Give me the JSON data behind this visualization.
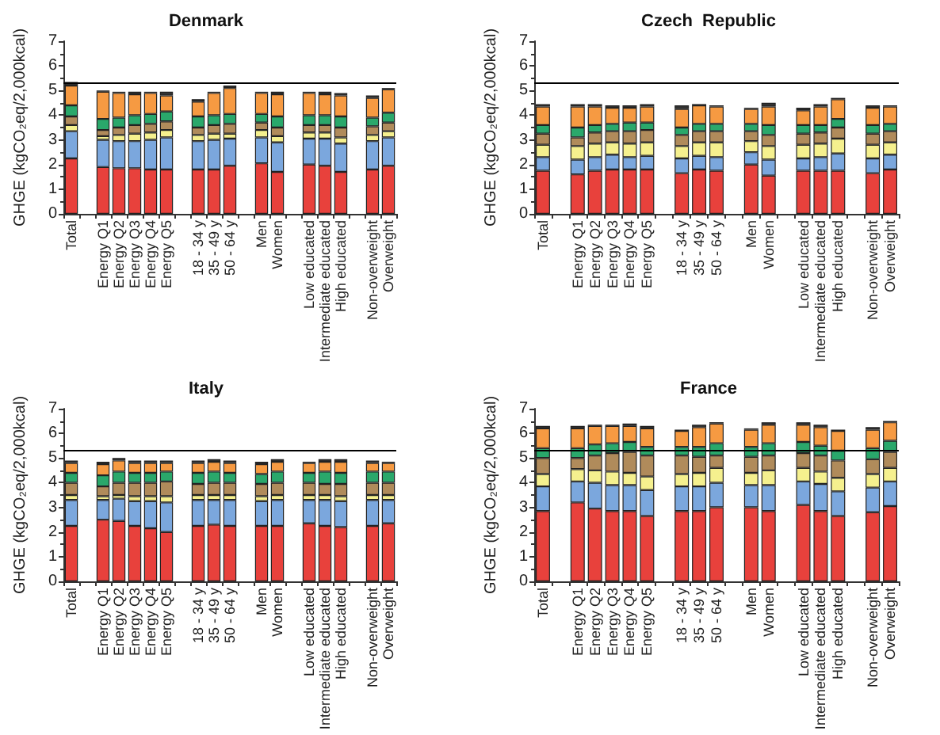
{
  "chart_data": [
    {
      "type": "bar",
      "title": "Denmark",
      "ylabel": "GHGE (kgCO₂eq/2,000kcal)",
      "stacked": true,
      "ylim": [
        0,
        7
      ],
      "yticks": [
        0,
        1,
        2,
        3,
        4,
        5,
        6,
        7
      ],
      "grid": false,
      "legend": false,
      "categories": [
        "Total",
        null,
        "Energy Q1",
        "Energy Q2",
        "Energy Q3",
        "Energy Q4",
        "Energy Q5",
        null,
        "18 - 34 y",
        "35 - 49 y",
        "50 - 64 y",
        null,
        "Men",
        "Women",
        null,
        "Low educated",
        "Intermediate educated",
        "High educated",
        null,
        "Non-overweight",
        "Overweight"
      ],
      "ref_lines": [
        {
          "axis": "y",
          "value": 5.3,
          "color": "#000000"
        }
      ],
      "series": [
        {
          "color": "#e8413c",
          "values": [
            2.25,
            null,
            1.9,
            1.85,
            1.85,
            1.8,
            1.8,
            null,
            1.8,
            1.8,
            1.95,
            null,
            2.05,
            1.7,
            null,
            2.0,
            1.95,
            1.7,
            null,
            1.8,
            1.95
          ]
        },
        {
          "color": "#7ba7dd",
          "values": [
            1.1,
            null,
            1.1,
            1.1,
            1.1,
            1.2,
            1.3,
            null,
            1.15,
            1.2,
            1.1,
            null,
            1.05,
            1.2,
            null,
            1.05,
            1.1,
            1.15,
            null,
            1.15,
            1.15
          ]
        },
        {
          "color": "#f5f08e",
          "values": [
            0.25,
            null,
            0.15,
            0.25,
            0.3,
            0.3,
            0.3,
            null,
            0.25,
            0.25,
            0.2,
            null,
            0.3,
            0.25,
            null,
            0.25,
            0.25,
            0.25,
            null,
            0.25,
            0.25
          ]
        },
        {
          "color": "#b08b5b",
          "values": [
            0.35,
            null,
            0.25,
            0.3,
            0.35,
            0.35,
            0.35,
            null,
            0.3,
            0.35,
            0.4,
            null,
            0.3,
            0.35,
            null,
            0.3,
            0.3,
            0.4,
            null,
            0.35,
            0.35
          ]
        },
        {
          "color": "#2aa86b",
          "values": [
            0.45,
            null,
            0.45,
            0.4,
            0.4,
            0.4,
            0.4,
            null,
            0.45,
            0.4,
            0.4,
            null,
            0.35,
            0.45,
            null,
            0.4,
            0.4,
            0.45,
            null,
            0.35,
            0.4
          ]
        },
        {
          "color": "#f69a42",
          "values": [
            0.8,
            null,
            1.1,
            1.0,
            0.85,
            0.85,
            0.65,
            null,
            0.6,
            0.9,
            1.05,
            null,
            0.85,
            0.9,
            null,
            0.9,
            0.85,
            0.85,
            null,
            0.8,
            0.95
          ]
        },
        {
          "color": "#333333",
          "values": [
            0.15,
            null,
            0.05,
            0.05,
            0.1,
            0.05,
            0.15,
            null,
            0.1,
            0.05,
            0.1,
            null,
            0.05,
            0.1,
            null,
            0.05,
            0.1,
            0.1,
            null,
            0.1,
            0.05
          ]
        }
      ]
    },
    {
      "type": "bar",
      "title": "Czech  Republic",
      "ylabel": "GHGE (kgCO₂eq/2,000kcal)",
      "stacked": true,
      "ylim": [
        0,
        7
      ],
      "yticks": [
        0,
        1,
        2,
        3,
        4,
        5,
        6,
        7
      ],
      "grid": false,
      "legend": false,
      "categories": [
        "Total",
        null,
        "Energy Q1",
        "Energy Q2",
        "Energy Q3",
        "Energy Q4",
        "Energy Q5",
        null,
        "18 - 34 y",
        "35 - 49 y",
        "50 - 64 y",
        null,
        "Men",
        "Women",
        null,
        "Low educated",
        "Intermediate educated",
        "High educated",
        null,
        "Non-overweight",
        "Overweight"
      ],
      "ref_lines": [
        {
          "axis": "y",
          "value": 5.3,
          "color": "#000000"
        }
      ],
      "series": [
        {
          "color": "#e8413c",
          "values": [
            1.75,
            null,
            1.6,
            1.75,
            1.8,
            1.8,
            1.8,
            null,
            1.65,
            1.8,
            1.75,
            null,
            2.0,
            1.55,
            null,
            1.75,
            1.75,
            1.75,
            null,
            1.65,
            1.8
          ]
        },
        {
          "color": "#7ba7dd",
          "values": [
            0.55,
            null,
            0.6,
            0.55,
            0.6,
            0.5,
            0.55,
            null,
            0.6,
            0.55,
            0.55,
            null,
            0.5,
            0.65,
            null,
            0.5,
            0.55,
            0.7,
            null,
            0.6,
            0.6
          ]
        },
        {
          "color": "#f5f08e",
          "values": [
            0.5,
            null,
            0.55,
            0.55,
            0.5,
            0.55,
            0.55,
            null,
            0.5,
            0.55,
            0.6,
            null,
            0.45,
            0.55,
            null,
            0.55,
            0.55,
            0.6,
            null,
            0.55,
            0.5
          ]
        },
        {
          "color": "#b08b5b",
          "values": [
            0.45,
            null,
            0.35,
            0.45,
            0.45,
            0.5,
            0.5,
            null,
            0.45,
            0.45,
            0.45,
            null,
            0.4,
            0.45,
            null,
            0.45,
            0.45,
            0.45,
            null,
            0.45,
            0.45
          ]
        },
        {
          "color": "#2aa86b",
          "values": [
            0.35,
            null,
            0.4,
            0.3,
            0.3,
            0.35,
            0.3,
            null,
            0.3,
            0.3,
            0.3,
            null,
            0.3,
            0.4,
            null,
            0.35,
            0.3,
            0.35,
            null,
            0.35,
            0.3
          ]
        },
        {
          "color": "#f69a42",
          "values": [
            0.75,
            null,
            0.85,
            0.75,
            0.65,
            0.6,
            0.65,
            null,
            0.75,
            0.75,
            0.7,
            null,
            0.6,
            0.75,
            null,
            0.6,
            0.75,
            0.8,
            null,
            0.7,
            0.7
          ]
        },
        {
          "color": "#333333",
          "values": [
            0.1,
            null,
            0.1,
            0.1,
            0.1,
            0.1,
            0.1,
            null,
            0.15,
            0.05,
            0.05,
            null,
            0.05,
            0.15,
            null,
            0.1,
            0.1,
            0.05,
            null,
            0.1,
            0.05
          ]
        }
      ]
    },
    {
      "type": "bar",
      "title": "Italy",
      "ylabel": "GHGE (kgCO₂eq/2,000kcal)",
      "stacked": true,
      "ylim": [
        0,
        7
      ],
      "yticks": [
        0,
        1,
        2,
        3,
        4,
        5,
        6,
        7
      ],
      "grid": false,
      "legend": false,
      "categories": [
        "Total",
        null,
        "Energy Q1",
        "Energy Q2",
        "Energy Q3",
        "Energy Q4",
        "Energy Q5",
        null,
        "18 - 34 y",
        "35 - 49 y",
        "50 - 64 y",
        null,
        "Men",
        "Women",
        null,
        "Low educated",
        "Intermediate educated",
        "High educated",
        null,
        "Non-overweight",
        "Overweight"
      ],
      "ref_lines": [
        {
          "axis": "y",
          "value": 5.3,
          "color": "#000000"
        }
      ],
      "series": [
        {
          "color": "#e8413c",
          "values": [
            2.25,
            null,
            2.5,
            2.45,
            2.25,
            2.15,
            2.0,
            null,
            2.25,
            2.3,
            2.25,
            null,
            2.25,
            2.25,
            null,
            2.35,
            2.25,
            2.2,
            null,
            2.25,
            2.35
          ]
        },
        {
          "color": "#7ba7dd",
          "values": [
            1.05,
            null,
            0.8,
            0.9,
            1.0,
            1.1,
            1.2,
            null,
            1.05,
            1.0,
            1.05,
            null,
            1.0,
            1.05,
            null,
            0.95,
            1.05,
            1.05,
            null,
            1.05,
            0.95
          ]
        },
        {
          "color": "#f5f08e",
          "values": [
            0.2,
            null,
            0.15,
            0.15,
            0.2,
            0.2,
            0.25,
            null,
            0.2,
            0.2,
            0.2,
            null,
            0.2,
            0.2,
            null,
            0.2,
            0.2,
            0.2,
            null,
            0.2,
            0.2
          ]
        },
        {
          "color": "#b08b5b",
          "values": [
            0.5,
            null,
            0.4,
            0.5,
            0.55,
            0.55,
            0.6,
            null,
            0.45,
            0.5,
            0.5,
            null,
            0.5,
            0.5,
            null,
            0.5,
            0.45,
            0.5,
            null,
            0.5,
            0.5
          ]
        },
        {
          "color": "#2aa86b",
          "values": [
            0.4,
            null,
            0.45,
            0.45,
            0.4,
            0.4,
            0.4,
            null,
            0.45,
            0.45,
            0.4,
            null,
            0.4,
            0.45,
            null,
            0.4,
            0.5,
            0.45,
            null,
            0.45,
            0.45
          ]
        },
        {
          "color": "#f69a42",
          "values": [
            0.4,
            null,
            0.45,
            0.45,
            0.4,
            0.4,
            0.35,
            null,
            0.4,
            0.4,
            0.4,
            null,
            0.4,
            0.4,
            null,
            0.4,
            0.4,
            0.45,
            null,
            0.35,
            0.35
          ]
        },
        {
          "color": "#333333",
          "values": [
            0.1,
            null,
            0.1,
            0.1,
            0.1,
            0.1,
            0.1,
            null,
            0.1,
            0.1,
            0.1,
            null,
            0.1,
            0.1,
            null,
            0.05,
            0.1,
            0.1,
            null,
            0.1,
            0.05
          ]
        }
      ]
    },
    {
      "type": "bar",
      "title": "France",
      "ylabel": "GHGE (kgCO₂eq/2,000kcal)",
      "stacked": true,
      "ylim": [
        0,
        7
      ],
      "yticks": [
        0,
        1,
        2,
        3,
        4,
        5,
        6,
        7
      ],
      "grid": false,
      "legend": false,
      "categories": [
        "Total",
        null,
        "Energy Q1",
        "Energy Q2",
        "Energy Q3",
        "Energy Q4",
        "Energy Q5",
        null,
        "18 - 34 y",
        "35 - 49 y",
        "50 - 64 y",
        null,
        "Men",
        "Women",
        null,
        "Low educated",
        "Intermediate educated",
        "High educated",
        null,
        "Non-overweight",
        "Overweight"
      ],
      "ref_lines": [
        {
          "axis": "y",
          "value": 5.3,
          "color": "#000000"
        }
      ],
      "series": [
        {
          "color": "#e8413c",
          "values": [
            2.85,
            null,
            3.2,
            2.95,
            2.85,
            2.85,
            2.65,
            null,
            2.85,
            2.85,
            3.0,
            null,
            3.0,
            2.85,
            null,
            3.1,
            2.85,
            2.65,
            null,
            2.8,
            3.05
          ]
        },
        {
          "color": "#7ba7dd",
          "values": [
            1.0,
            null,
            0.85,
            1.05,
            1.05,
            1.05,
            1.05,
            null,
            1.0,
            1.0,
            1.0,
            null,
            0.9,
            1.05,
            null,
            0.95,
            1.1,
            1.0,
            null,
            1.0,
            1.0
          ]
        },
        {
          "color": "#f5f08e",
          "values": [
            0.5,
            null,
            0.5,
            0.5,
            0.55,
            0.5,
            0.55,
            null,
            0.5,
            0.55,
            0.6,
            null,
            0.5,
            0.6,
            null,
            0.55,
            0.5,
            0.55,
            null,
            0.55,
            0.55
          ]
        },
        {
          "color": "#b08b5b",
          "values": [
            0.65,
            null,
            0.45,
            0.6,
            0.75,
            0.85,
            0.85,
            null,
            0.75,
            0.65,
            0.5,
            null,
            0.65,
            0.6,
            null,
            0.6,
            0.65,
            0.7,
            null,
            0.6,
            0.65
          ]
        },
        {
          "color": "#2aa86b",
          "values": [
            0.4,
            null,
            0.4,
            0.45,
            0.4,
            0.4,
            0.35,
            null,
            0.35,
            0.4,
            0.5,
            null,
            0.4,
            0.5,
            null,
            0.45,
            0.4,
            0.4,
            null,
            0.45,
            0.45
          ]
        },
        {
          "color": "#f69a42",
          "values": [
            0.8,
            null,
            0.8,
            0.75,
            0.7,
            0.65,
            0.75,
            null,
            0.65,
            0.8,
            0.8,
            null,
            0.7,
            0.75,
            null,
            0.7,
            0.75,
            0.8,
            null,
            0.75,
            0.75
          ]
        },
        {
          "color": "#333333",
          "values": [
            0.1,
            null,
            0.1,
            0.05,
            0.05,
            0.1,
            0.1,
            null,
            0.05,
            0.1,
            0.05,
            null,
            0.05,
            0.1,
            null,
            0.1,
            0.1,
            0.05,
            null,
            0.1,
            0.05
          ]
        }
      ]
    }
  ]
}
